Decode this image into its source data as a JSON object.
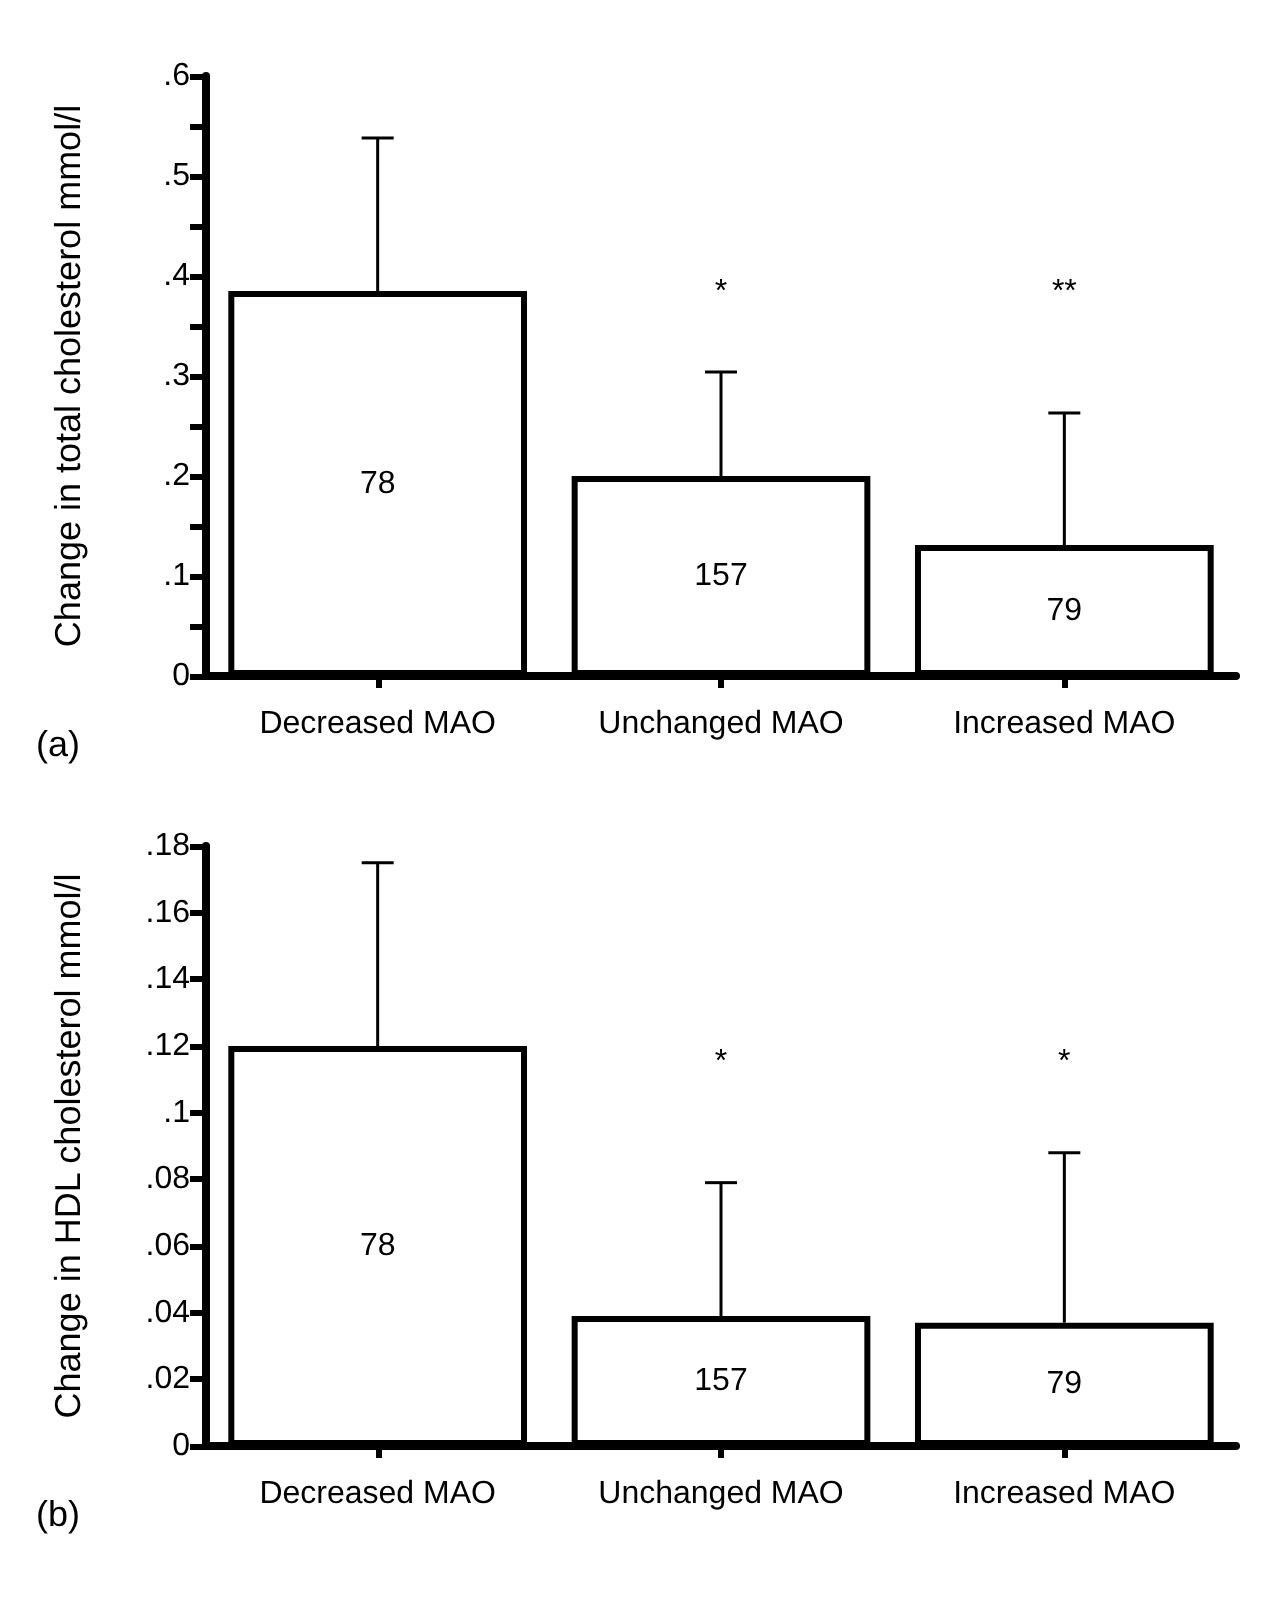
{
  "chart_data": [
    {
      "type": "bar",
      "ylabel": "Change in total cholesterol mmol/l",
      "categories": [
        "Decreased MAO",
        "Unchanged MAO",
        "Increased MAO"
      ],
      "values": [
        0.385,
        0.2,
        0.131
      ],
      "color": "#ffffff",
      "errors": [
        [
          0.385,
          0.538
        ],
        [
          0.2,
          0.304
        ],
        [
          0.131,
          0.263
        ]
      ],
      "ylim": [
        0,
        0.6
      ],
      "yticks": [
        {
          "value": 0,
          "label": "0"
        },
        {
          "value": 0.05,
          "label": null
        },
        {
          "value": 0.1,
          "label": ".1"
        },
        {
          "value": 0.15,
          "label": null
        },
        {
          "value": 0.2,
          "label": ".2"
        },
        {
          "value": 0.25,
          "label": null
        },
        {
          "value": 0.3,
          "label": ".3"
        },
        {
          "value": 0.35,
          "label": null
        },
        {
          "value": 0.4,
          "label": ".4"
        },
        {
          "value": 0.45,
          "label": null
        },
        {
          "value": 0.5,
          "label": ".5"
        },
        {
          "value": 0.55,
          "label": null
        },
        {
          "value": 0.6,
          "label": ".6"
        }
      ],
      "grid": false,
      "annotations": [
        "(a)",
        "78",
        "157",
        "79",
        "*",
        "**"
      ]
    },
    {
      "type": "bar",
      "ylabel": "Change in HDL cholesterol mmol/l",
      "categories": [
        "Decreased MAO",
        "Unchanged MAO",
        "Increased MAO"
      ],
      "values": [
        0.12,
        0.039,
        0.037
      ],
      "color": "#ffffff",
      "errors": [
        [
          0.12,
          0.175
        ],
        [
          0.039,
          0.079
        ],
        [
          0.037,
          0.088
        ]
      ],
      "ylim": [
        0,
        0.18
      ],
      "yticks": [
        {
          "value": 0,
          "label": "0"
        },
        {
          "value": 0.02,
          "label": ".02"
        },
        {
          "value": 0.04,
          "label": ".04"
        },
        {
          "value": 0.06,
          "label": ".06"
        },
        {
          "value": 0.08,
          "label": ".08"
        },
        {
          "value": 0.1,
          "label": ".1"
        },
        {
          "value": 0.12,
          "label": ".12"
        },
        {
          "value": 0.14,
          "label": ".14"
        },
        {
          "value": 0.16,
          "label": ".16"
        },
        {
          "value": 0.18,
          "label": ".18"
        }
      ],
      "grid": false,
      "annotations": [
        "(b)",
        "78",
        "157",
        "79",
        "*",
        "*"
      ]
    }
  ]
}
